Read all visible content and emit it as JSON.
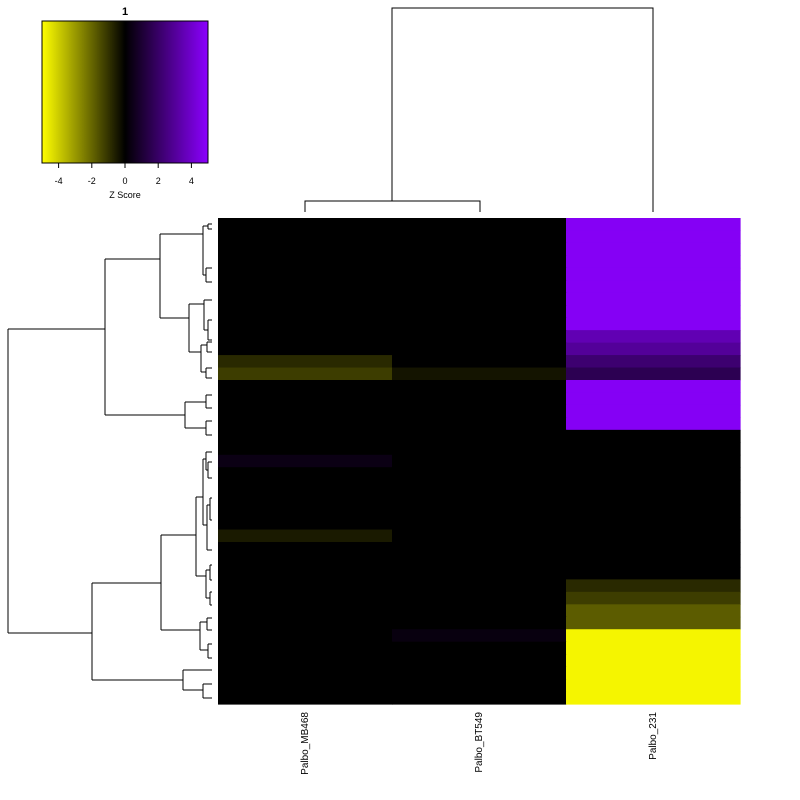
{
  "chart_data": {
    "type": "heatmap",
    "columns": [
      "Palbo_MB468",
      "Palbo_BT549",
      "Palbo_231"
    ],
    "values": [
      [
        0,
        0,
        4.8
      ],
      [
        0,
        0,
        4.8
      ],
      [
        0,
        0,
        4.8
      ],
      [
        0,
        0,
        4.8
      ],
      [
        0,
        0,
        4.8
      ],
      [
        0,
        0,
        4.8
      ],
      [
        0,
        0,
        4.8
      ],
      [
        0,
        0,
        4.8
      ],
      [
        0,
        0,
        4.8
      ],
      [
        0,
        0,
        3.5
      ],
      [
        0,
        0,
        3.0
      ],
      [
        -0.8,
        0,
        2.2
      ],
      [
        -1.2,
        -0.4,
        1.6
      ],
      [
        0,
        0,
        4.8
      ],
      [
        0,
        0,
        4.8
      ],
      [
        0,
        0,
        4.8
      ],
      [
        0,
        0,
        4.8
      ],
      [
        0,
        0,
        0
      ],
      [
        0,
        0,
        0
      ],
      [
        0.4,
        0,
        0
      ],
      [
        0,
        0,
        0
      ],
      [
        0,
        0,
        0
      ],
      [
        0,
        0,
        0
      ],
      [
        0,
        0,
        0
      ],
      [
        0,
        0,
        0
      ],
      [
        -0.5,
        0,
        0
      ],
      [
        0,
        0,
        0
      ],
      [
        0,
        0,
        0
      ],
      [
        0,
        0,
        0
      ],
      [
        0,
        0,
        -0.8
      ],
      [
        0,
        0,
        -1.2
      ],
      [
        0,
        0,
        -1.8
      ],
      [
        0,
        0,
        -1.8
      ],
      [
        0,
        0.3,
        -4.8
      ],
      [
        0,
        0,
        -4.8
      ],
      [
        0,
        0,
        -4.8
      ],
      [
        0,
        0,
        -4.8
      ],
      [
        0,
        0,
        -4.8
      ],
      [
        0,
        0,
        -4.8
      ]
    ],
    "colorbar": {
      "title": "1",
      "label": "Z Score",
      "ticks": [
        "-4",
        "-2",
        "0",
        "2",
        "4"
      ],
      "range": [
        -5,
        5
      ],
      "low_color": "#ffff00",
      "mid_color": "#000000",
      "high_color": "#8b00ff"
    }
  }
}
